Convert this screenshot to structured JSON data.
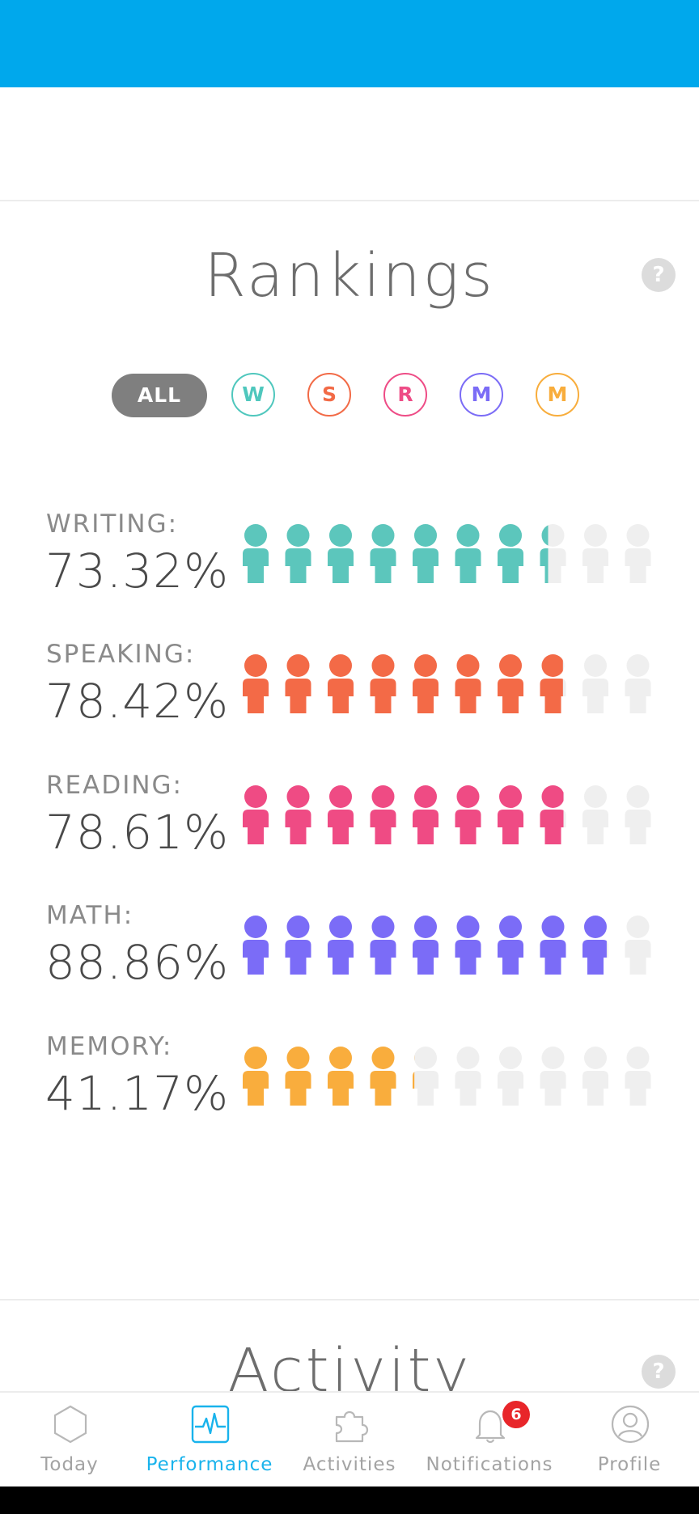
{
  "rankings": {
    "title": "Rankings",
    "help": "?",
    "filters": {
      "all": "ALL",
      "chips": [
        {
          "label": "W",
          "color": "#4fc7bd"
        },
        {
          "label": "S",
          "color": "#f26a46"
        },
        {
          "label": "R",
          "color": "#ee4c86"
        },
        {
          "label": "M",
          "color": "#7b6cf6"
        },
        {
          "label": "M",
          "color": "#f8ad3c"
        }
      ]
    },
    "rows": [
      {
        "label": "WRITING:",
        "value": "73.32%",
        "percent": 73.32,
        "color": "#5cc6bc"
      },
      {
        "label": "SPEAKING:",
        "value": "78.42%",
        "percent": 78.42,
        "color": "#f36a47"
      },
      {
        "label": "READING:",
        "value": "78.61%",
        "percent": 78.61,
        "color": "#ef4b84"
      },
      {
        "label": "MATH:",
        "value": "88.86%",
        "percent": 88.86,
        "color": "#7b6cf7"
      },
      {
        "label": "MEMORY:",
        "value": "41.17%",
        "percent": 41.17,
        "color": "#f9ad3d"
      }
    ],
    "empty_color": "#efefef"
  },
  "activity": {
    "title": "Activity",
    "help": "?"
  },
  "tabbar": {
    "active_color": "#19b3ec",
    "inactive_color": "#a3a3a3",
    "tabs": [
      {
        "label": "Today",
        "icon": "hexagon-icon"
      },
      {
        "label": "Performance",
        "icon": "pulse-icon"
      },
      {
        "label": "Activities",
        "icon": "puzzle-icon"
      },
      {
        "label": "Notifications",
        "icon": "bell-icon",
        "badge": "6"
      },
      {
        "label": "Profile",
        "icon": "person-icon"
      }
    ]
  }
}
